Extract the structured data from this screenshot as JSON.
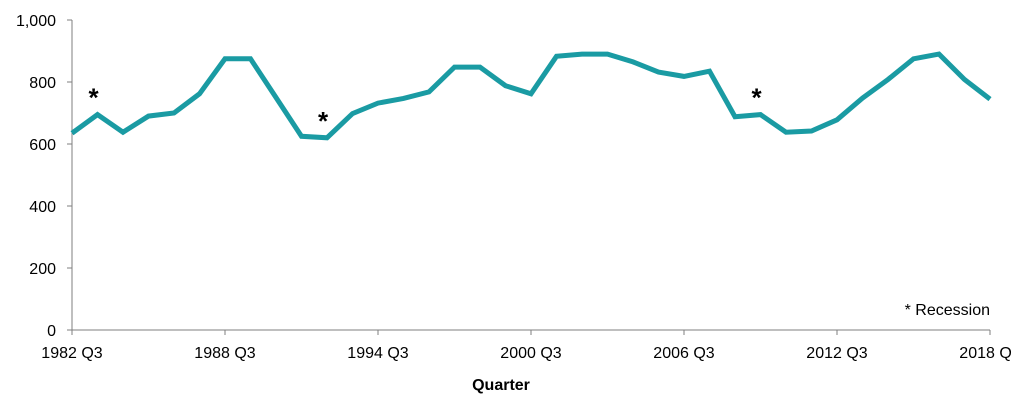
{
  "chart_data": {
    "type": "line",
    "title": "",
    "xlabel": "Quarter",
    "ylabel": "",
    "ylim": [
      0,
      1000
    ],
    "yticks": [
      "0",
      "200",
      "400",
      "600",
      "800",
      "1,000"
    ],
    "x": [
      "1982 Q3",
      "1983 Q3",
      "1984 Q3",
      "1985 Q3",
      "1986 Q3",
      "1987 Q3",
      "1988 Q3",
      "1989 Q3",
      "1990 Q3",
      "1991 Q3",
      "1992 Q3",
      "1993 Q3",
      "1994 Q3",
      "1995 Q3",
      "1996 Q3",
      "1997 Q3",
      "1998 Q3",
      "1999 Q3",
      "2000 Q3",
      "2001 Q3",
      "2002 Q3",
      "2003 Q3",
      "2004 Q3",
      "2005 Q3",
      "2006 Q3",
      "2007 Q3",
      "2008 Q3",
      "2009 Q3",
      "2010 Q3",
      "2011 Q3",
      "2012 Q3",
      "2013 Q3",
      "2014 Q3",
      "2015 Q3",
      "2016 Q3",
      "2017 Q3",
      "2018 Q3"
    ],
    "xtick_labels": [
      "1982 Q3",
      "1988 Q3",
      "1994 Q3",
      "2000 Q3",
      "2006 Q3",
      "2012 Q3",
      "2018 Q3"
    ],
    "series": [
      {
        "values": [
          635,
          695,
          638,
          690,
          700,
          762,
          875,
          875,
          750,
          625,
          620,
          698,
          732,
          747,
          768,
          848,
          848,
          788,
          762,
          883,
          890,
          890,
          865,
          832,
          818,
          835,
          688,
          695,
          638,
          642,
          678,
          748,
          808,
          875,
          890,
          808,
          745
        ]
      }
    ],
    "annotations": [
      {
        "text": "*",
        "x": "1983 Q3"
      },
      {
        "text": "*",
        "x": "1992 Q3"
      },
      {
        "text": "*",
        "x": "2009 Q3"
      }
    ],
    "legend_note": "* Recession",
    "grid": false,
    "colors": {
      "line": "#1a9ba3",
      "axis": "#7f7f7f"
    }
  }
}
